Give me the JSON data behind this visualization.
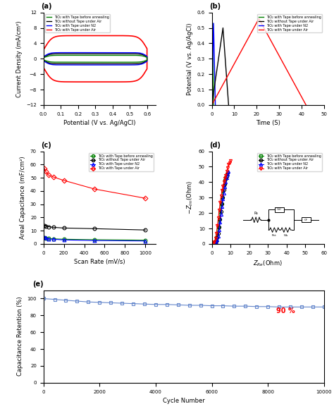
{
  "fig_width": 4.74,
  "fig_height": 5.9,
  "panel_a": {
    "xlabel": "Potential (V vs. Ag/AgCl)",
    "ylabel": "Current Density (mA/cm²)",
    "xlim": [
      0.0,
      0.65
    ],
    "ylim": [
      -12,
      12
    ],
    "xticks": [
      0.0,
      0.1,
      0.2,
      0.3,
      0.4,
      0.5,
      0.6
    ],
    "yticks": [
      -12,
      -8,
      -4,
      0,
      4,
      8,
      12
    ]
  },
  "panel_b": {
    "xlabel": "Time (S)",
    "ylabel": "Potential (V vs. Ag/AgCl)",
    "xlim": [
      0,
      50
    ],
    "ylim": [
      0.0,
      0.6
    ],
    "xticks": [
      0,
      10,
      20,
      30,
      40,
      50
    ],
    "yticks": [
      0.0,
      0.1,
      0.2,
      0.3,
      0.4,
      0.5,
      0.6
    ]
  },
  "panel_c": {
    "xlabel": "Scan Rate (mV/s)",
    "ylabel": "Areal Capacitance (mF/cm²)",
    "xlim": [
      0,
      1100
    ],
    "ylim": [
      0,
      70
    ],
    "xticks": [
      0,
      200,
      400,
      600,
      800,
      1000
    ],
    "yticks": [
      0,
      10,
      20,
      30,
      40,
      50,
      60,
      70
    ],
    "series": [
      {
        "label": "TiO₂ with Tape before annealing",
        "color": "green",
        "marker": "o",
        "x": [
          10,
          20,
          50,
          100,
          200,
          500,
          1000
        ],
        "y": [
          4.5,
          4.2,
          4.0,
          3.8,
          3.5,
          3.2,
          2.8
        ]
      },
      {
        "label": "TiO₂ without Tape under Air",
        "color": "black",
        "marker": "o",
        "x": [
          10,
          20,
          50,
          100,
          200,
          500,
          1000
        ],
        "y": [
          14.0,
          13.5,
          13.0,
          12.5,
          12.0,
          11.5,
          10.5
        ]
      },
      {
        "label": "TiO₂ with Tape under N2",
        "color": "blue",
        "marker": "^",
        "x": [
          10,
          20,
          50,
          100,
          200,
          500,
          1000
        ],
        "y": [
          5.0,
          4.5,
          3.8,
          3.5,
          3.0,
          2.5,
          2.2
        ]
      },
      {
        "label": "TiO₂ with Tape under Air",
        "color": "red",
        "marker": "D",
        "x": [
          10,
          20,
          50,
          100,
          200,
          500,
          1000
        ],
        "y": [
          57.0,
          55.0,
          52.0,
          50.5,
          48.0,
          41.5,
          34.5
        ]
      }
    ]
  },
  "panel_d": {
    "xlabel": "Z_Re(Ohm)",
    "ylabel": "-Z_Im(Ohm)",
    "xlim": [
      0,
      60
    ],
    "ylim": [
      0,
      60
    ],
    "xticks": [
      0,
      10,
      20,
      30,
      40,
      50,
      60
    ],
    "yticks": [
      0,
      10,
      20,
      30,
      40,
      50,
      60
    ],
    "series": [
      {
        "label": "TiO₂ with Tape before annealing",
        "color": "green",
        "marker": "s",
        "x": [
          1.0,
          1.5,
          2.0,
          2.5,
          3.0,
          3.5,
          4.0,
          4.5,
          5.0,
          5.5,
          6.0,
          6.5,
          7.0,
          7.5,
          8.0
        ],
        "y": [
          0.5,
          1.0,
          2.0,
          4.0,
          7.0,
          11.0,
          16.0,
          21.0,
          26.0,
          30.0,
          34.0,
          38.0,
          41.0,
          43.0,
          45.0
        ]
      },
      {
        "label": "TiO₂ without Tape under Air",
        "color": "black",
        "marker": "o",
        "x": [
          1.5,
          2.0,
          2.5,
          3.0,
          3.5,
          4.0,
          4.5,
          5.0,
          5.5,
          6.0,
          6.5,
          7.0,
          7.5,
          8.0,
          8.5
        ],
        "y": [
          0.5,
          1.0,
          2.0,
          4.0,
          7.0,
          11.0,
          16.0,
          21.0,
          26.0,
          30.0,
          35.0,
          39.0,
          42.0,
          44.0,
          46.0
        ]
      },
      {
        "label": "TiO₂ with Tape under N2",
        "color": "blue",
        "marker": "^",
        "x": [
          2.0,
          2.5,
          3.0,
          3.5,
          4.0,
          4.5,
          5.0,
          5.5,
          6.0,
          6.5,
          7.0,
          7.5,
          8.0,
          8.5,
          9.0
        ],
        "y": [
          0.5,
          1.0,
          2.5,
          5.0,
          9.0,
          14.0,
          19.0,
          24.0,
          29.0,
          33.0,
          37.0,
          40.0,
          43.0,
          45.0,
          47.0
        ]
      },
      {
        "label": "TiO₂ with Tape under Air",
        "color": "red",
        "marker": "v",
        "x": [
          1.0,
          1.5,
          2.0,
          2.5,
          3.0,
          3.5,
          4.0,
          4.5,
          5.0,
          5.5,
          6.0,
          6.5,
          7.0,
          7.5,
          8.0,
          8.5,
          9.0,
          9.5,
          10.0
        ],
        "y": [
          0.5,
          1.5,
          3.5,
          7.0,
          12.0,
          17.0,
          22.0,
          27.0,
          31.0,
          34.5,
          37.5,
          40.0,
          42.5,
          44.5,
          47.0,
          49.5,
          51.5,
          52.5,
          54.0
        ]
      }
    ]
  },
  "panel_e": {
    "xlabel": "Cycle Number",
    "ylabel": "Capacitance Retention (%)",
    "xlim": [
      0,
      10000
    ],
    "ylim": [
      0,
      110
    ],
    "xticks": [
      0,
      2000,
      4000,
      6000,
      8000,
      10000
    ],
    "yticks": [
      0,
      20,
      40,
      60,
      80,
      100
    ],
    "annotation": "90 %",
    "annotation_color": "red",
    "x": [
      0,
      400,
      800,
      1200,
      1600,
      2000,
      2400,
      2800,
      3200,
      3600,
      4000,
      4400,
      4800,
      5200,
      5600,
      6000,
      6400,
      6800,
      7200,
      7600,
      8000,
      8400,
      8800,
      9200,
      9600,
      10000
    ],
    "y": [
      100,
      99,
      98,
      97,
      96,
      95.5,
      95,
      94.5,
      94,
      93.5,
      93,
      93,
      92.5,
      92,
      92,
      91.5,
      91.5,
      91,
      91,
      90.5,
      90.5,
      90,
      90,
      90,
      90,
      90
    ],
    "color": "#6688cc",
    "marker": "s"
  }
}
